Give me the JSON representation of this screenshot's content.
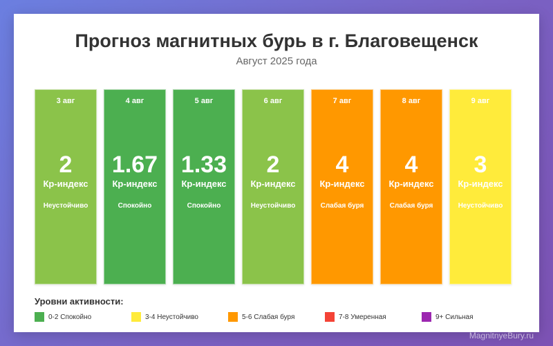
{
  "title": "Прогноз магнитных бурь в г. Благовещенск",
  "subtitle": "Август 2025 года",
  "unit_label": "Кр-индекс",
  "days": [
    {
      "date": "3 авг",
      "value": "2",
      "status": "Неустойчиво",
      "color": "#8bc34a"
    },
    {
      "date": "4 авг",
      "value": "1.67",
      "status": "Спокойно",
      "color": "#4caf50"
    },
    {
      "date": "5 авг",
      "value": "1.33",
      "status": "Спокойно",
      "color": "#4caf50"
    },
    {
      "date": "6 авг",
      "value": "2",
      "status": "Неустойчиво",
      "color": "#8bc34a"
    },
    {
      "date": "7 авг",
      "value": "4",
      "status": "Слабая буря",
      "color": "#ff9800"
    },
    {
      "date": "8 авг",
      "value": "4",
      "status": "Слабая буря",
      "color": "#ff9800"
    },
    {
      "date": "9 авг",
      "value": "3",
      "status": "Неустойчиво",
      "color": "#ffeb3b"
    }
  ],
  "legend": {
    "title": "Уровни активности:",
    "items": [
      {
        "label": "0-2 Спокойно",
        "color": "#4caf50"
      },
      {
        "label": "3-4 Неустойчиво",
        "color": "#ffeb3b"
      },
      {
        "label": "5-6 Слабая буря",
        "color": "#ff9800"
      },
      {
        "label": "7-8 Умеренная",
        "color": "#f44336"
      },
      {
        "label": "9+ Сильная",
        "color": "#9c27b0"
      }
    ]
  },
  "watermark": "MagnitnyeBury.ru"
}
